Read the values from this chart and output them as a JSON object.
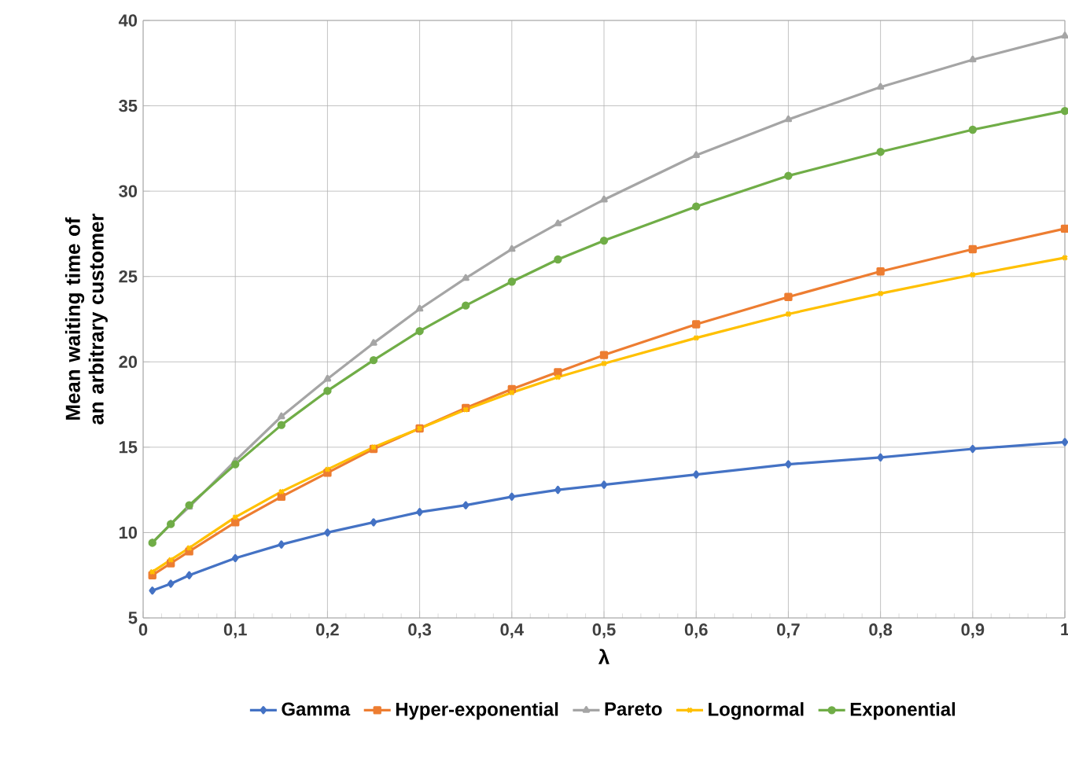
{
  "chart_data": {
    "type": "line",
    "xlabel": "λ",
    "ylabel": "Mean waiting time of an arbitrary customer",
    "x": [
      0.01,
      0.03,
      0.05,
      0.1,
      0.15,
      0.2,
      0.25,
      0.3,
      0.35,
      0.4,
      0.45,
      0.5,
      0.6,
      0.7,
      0.8,
      0.9,
      1
    ],
    "xlim": [
      0,
      1
    ],
    "ylim": [
      5,
      40
    ],
    "xticks": [
      0,
      {
        "value": 0.1,
        "label": "0,1"
      },
      {
        "value": 0.2,
        "label": "0,2"
      },
      {
        "value": 0.3,
        "label": "0,3"
      },
      {
        "value": 0.4,
        "label": "0,4"
      },
      {
        "value": 0.5,
        "label": "0,5"
      },
      {
        "value": 0.6,
        "label": "0,6"
      },
      {
        "value": 0.7,
        "label": "0,7"
      },
      {
        "value": 0.8,
        "label": "0,8"
      },
      {
        "value": 0.9,
        "label": "0,9"
      },
      1
    ],
    "yticks": [
      5,
      10,
      15,
      20,
      25,
      30,
      35,
      40
    ],
    "grid": true,
    "legend": "bottom",
    "line_style": "solid",
    "series": [
      {
        "name": "Gamma",
        "color": "#4472c4",
        "marker": "diamond",
        "values": [
          6.6,
          7.0,
          7.5,
          8.5,
          9.3,
          10.0,
          10.6,
          11.2,
          11.6,
          12.1,
          12.5,
          12.8,
          13.4,
          14.0,
          14.4,
          14.9,
          15.3
        ]
      },
      {
        "name": "Hyper-exponential",
        "color": "#ed7d31",
        "marker": "square",
        "values": [
          7.5,
          8.2,
          8.9,
          10.6,
          12.1,
          13.5,
          14.9,
          16.1,
          17.3,
          18.4,
          19.4,
          20.4,
          22.2,
          23.8,
          25.3,
          26.6,
          27.8
        ]
      },
      {
        "name": "Pareto",
        "color": "#a5a5a5",
        "marker": "triangle",
        "values": [
          9.4,
          10.5,
          11.5,
          14.2,
          16.8,
          19.0,
          21.1,
          23.1,
          24.9,
          26.6,
          28.1,
          29.5,
          32.1,
          34.2,
          36.1,
          37.7,
          39.1
        ]
      },
      {
        "name": "Lognormal",
        "color": "#ffc000",
        "marker": "cross",
        "values": [
          7.7,
          8.4,
          9.1,
          10.9,
          12.4,
          13.7,
          15.0,
          16.1,
          17.2,
          18.2,
          19.1,
          19.9,
          21.4,
          22.8,
          24.0,
          25.1,
          26.1
        ]
      },
      {
        "name": "Exponential",
        "color": "#70ad47",
        "marker": "circle",
        "values": [
          9.4,
          10.5,
          11.6,
          14.0,
          16.3,
          18.3,
          20.1,
          21.8,
          23.3,
          24.7,
          26.0,
          27.1,
          29.1,
          30.9,
          32.3,
          33.6,
          34.7
        ]
      }
    ]
  }
}
